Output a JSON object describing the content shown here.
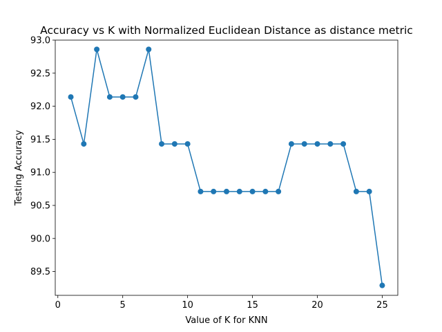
{
  "chart_data": {
    "type": "line",
    "title": "Accuracy vs K with Normalized Euclidean Distance as distance metric",
    "xlabel": "Value of K for KNN",
    "ylabel": "Testing Accuracy",
    "xlim": [
      -0.2,
      26.2
    ],
    "ylim": [
      89.14,
      93.0
    ],
    "xticks": [
      0,
      5,
      10,
      15,
      20,
      25
    ],
    "yticks": [
      89.5,
      90.0,
      90.5,
      91.0,
      91.5,
      92.0,
      92.5,
      93.0
    ],
    "grid": false,
    "legend": "none",
    "markers": "circle",
    "line_color": "#1f77b4",
    "series": [
      {
        "x": [
          1,
          2,
          3,
          4,
          5,
          6,
          7,
          8,
          9,
          10,
          11,
          12,
          13,
          14,
          15,
          16,
          17,
          18,
          19,
          20,
          21,
          22,
          23,
          24,
          25
        ],
        "values": [
          92.14,
          91.43,
          92.86,
          92.14,
          92.14,
          92.14,
          92.86,
          91.43,
          91.43,
          91.43,
          90.71,
          90.71,
          90.71,
          90.71,
          90.71,
          90.71,
          90.71,
          91.43,
          91.43,
          91.43,
          91.43,
          91.43,
          90.71,
          90.71,
          89.29
        ]
      }
    ]
  }
}
